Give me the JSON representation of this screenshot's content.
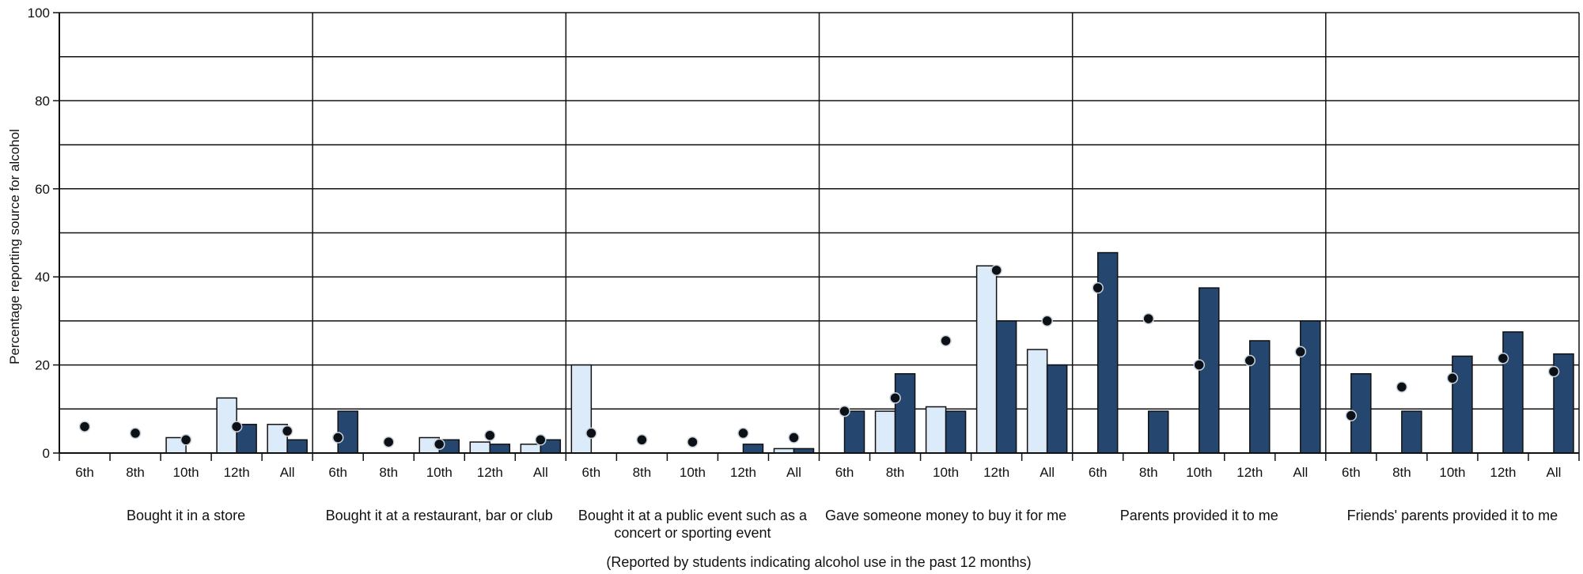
{
  "chart_data": {
    "type": "bar",
    "ylabel": "Percentage reporting source for alcohol",
    "xlabel": "",
    "note": "(Reported by students indicating alcohol use in the past 12 months)",
    "ylim": [
      0,
      100
    ],
    "yticks": [
      0,
      20,
      40,
      60,
      80,
      100
    ],
    "grid_step": 10,
    "grades": [
      "6th",
      "8th",
      "10th",
      "12th",
      "All"
    ],
    "colors": {
      "light": "#dcebf9",
      "dark": "#24466f",
      "dot": "#0c1118",
      "line": "#111111"
    },
    "groups": [
      {
        "label": [
          "Bought it in a store"
        ],
        "light": [
          0,
          0,
          3.5,
          12.5,
          6.5
        ],
        "dark": [
          0,
          0,
          0,
          6.5,
          3
        ],
        "dots": [
          6,
          4.5,
          3,
          6,
          5
        ]
      },
      {
        "label": [
          "Bought it at a restaurant, bar or club"
        ],
        "light": [
          0,
          0,
          3.5,
          2.5,
          2
        ],
        "dark": [
          9.5,
          0,
          3,
          2,
          3
        ],
        "dots": [
          3.5,
          2.5,
          2,
          4,
          3
        ]
      },
      {
        "label": [
          "Bought it at a public event such as a",
          "concert or sporting event"
        ],
        "light": [
          20,
          0,
          0,
          0,
          1
        ],
        "dark": [
          0,
          0,
          0,
          2,
          1
        ],
        "dots": [
          4.5,
          3,
          2.5,
          4.5,
          3.5
        ]
      },
      {
        "label": [
          "Gave someone money to buy it for me"
        ],
        "light": [
          0,
          9.5,
          10.5,
          42.5,
          23.5
        ],
        "dark": [
          9.5,
          18,
          9.5,
          30,
          20
        ],
        "dots": [
          9.5,
          12.5,
          25.5,
          41.5,
          30
        ]
      },
      {
        "label": [
          "Parents provided it to me"
        ],
        "light": [
          0,
          0,
          0,
          0,
          0
        ],
        "dark": [
          45.5,
          9.5,
          37.5,
          25.5,
          30
        ],
        "dots": [
          37.5,
          30.5,
          20,
          21,
          23
        ]
      },
      {
        "label": [
          "Friends' parents provided it to me"
        ],
        "light": [
          0,
          0,
          0,
          0,
          0
        ],
        "dark": [
          18,
          9.5,
          22,
          27.5,
          22.5
        ],
        "dots": [
          8.5,
          15,
          17,
          21.5,
          18.5
        ]
      }
    ]
  }
}
